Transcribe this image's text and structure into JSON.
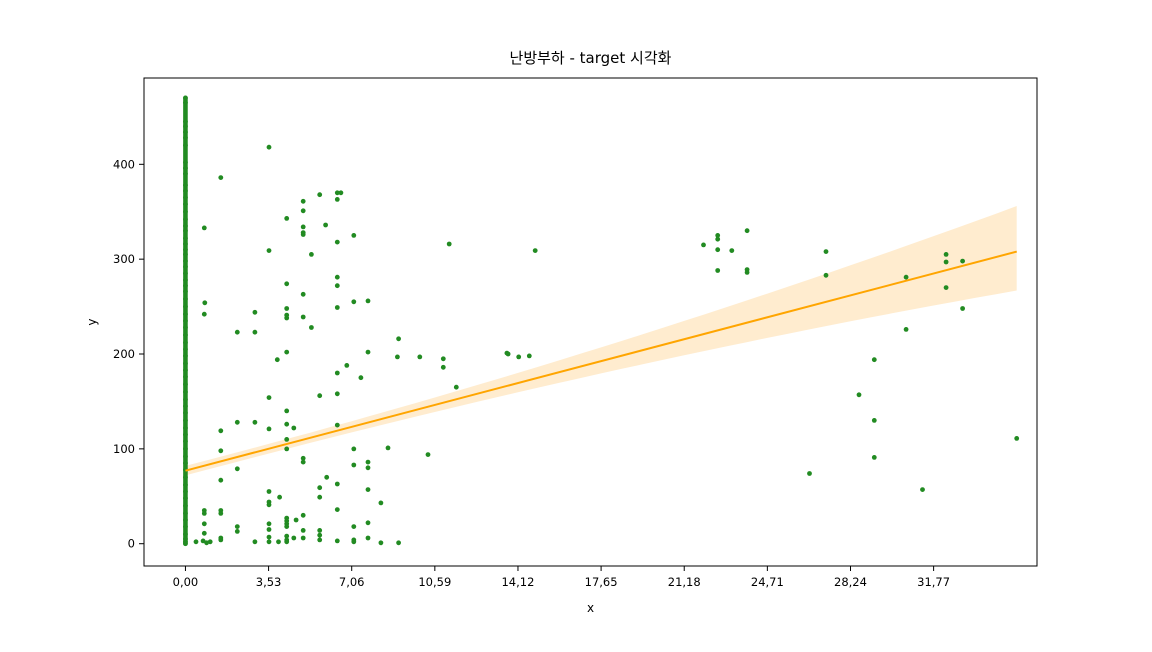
{
  "chart_data": {
    "type": "scatter",
    "title": "난방부하 - target 시각화",
    "xlabel": "x",
    "ylabel": "y",
    "xlim": [
      -1.76,
      36.16
    ],
    "ylim": [
      -23.5,
      491
    ],
    "x_ticks": [
      0.0,
      3.53,
      7.06,
      10.59,
      14.12,
      17.65,
      21.18,
      24.71,
      28.24,
      31.77
    ],
    "x_tick_labels": [
      "0,00",
      "3,53",
      "7,06",
      "10,59",
      "14,12",
      "17,65",
      "21,18",
      "24,71",
      "28,24",
      "31,77"
    ],
    "y_ticks": [
      0,
      100,
      200,
      300,
      400
    ],
    "y_tick_labels": [
      "0",
      "100",
      "200",
      "300",
      "400"
    ],
    "grid": false,
    "colors": {
      "points": "#228B22",
      "regression_line": "#FFA500",
      "confidence_band": "#FFE9C7"
    },
    "regression": {
      "x_range": [
        0.0,
        35.3
      ],
      "y_start": 77,
      "y_end": 308,
      "ci_upper_end": 356,
      "ci_lower_end": 267,
      "ci_x_left": 2.0,
      "ci_left_halfwidth": 5
    },
    "zero_column": {
      "x": 0.0,
      "y_range": [
        0,
        470
      ],
      "sample_values": [
        470,
        465,
        445,
        440,
        434,
        428,
        420,
        402,
        396,
        390,
        378,
        372,
        365,
        358,
        350,
        342,
        335,
        330,
        322,
        316,
        310,
        305,
        298,
        292,
        285,
        278,
        272,
        266,
        258,
        250,
        242,
        235,
        228,
        220,
        212,
        205,
        198,
        190,
        183,
        176,
        168,
        160,
        152,
        145,
        138,
        130,
        122,
        115,
        108,
        100,
        92,
        85,
        78,
        70,
        62,
        55,
        48,
        40,
        32,
        25,
        18,
        10,
        5,
        2,
        0
      ]
    },
    "points": [
      [
        0.45,
        2
      ],
      [
        0.8,
        333
      ],
      [
        0.82,
        254
      ],
      [
        0.8,
        242
      ],
      [
        0.8,
        35
      ],
      [
        0.8,
        32
      ],
      [
        0.8,
        21
      ],
      [
        0.8,
        11
      ],
      [
        0.75,
        3
      ],
      [
        0.9,
        1
      ],
      [
        1.05,
        2
      ],
      [
        1.5,
        386
      ],
      [
        1.5,
        119
      ],
      [
        1.5,
        98
      ],
      [
        1.5,
        67
      ],
      [
        1.5,
        35
      ],
      [
        1.5,
        32
      ],
      [
        1.5,
        6
      ],
      [
        1.5,
        4
      ],
      [
        2.2,
        223
      ],
      [
        2.2,
        128
      ],
      [
        2.2,
        79
      ],
      [
        2.2,
        18
      ],
      [
        2.2,
        13
      ],
      [
        2.95,
        244
      ],
      [
        2.95,
        223
      ],
      [
        2.95,
        128
      ],
      [
        2.95,
        2
      ],
      [
        3.55,
        418
      ],
      [
        3.55,
        309
      ],
      [
        3.55,
        154
      ],
      [
        3.55,
        121
      ],
      [
        3.55,
        55
      ],
      [
        3.55,
        44
      ],
      [
        3.55,
        41
      ],
      [
        3.55,
        21
      ],
      [
        3.55,
        15
      ],
      [
        3.55,
        7
      ],
      [
        3.55,
        2
      ],
      [
        3.9,
        194
      ],
      [
        4.0,
        49
      ],
      [
        3.95,
        2
      ],
      [
        4.3,
        343
      ],
      [
        4.3,
        274
      ],
      [
        4.3,
        248
      ],
      [
        4.3,
        241
      ],
      [
        4.3,
        238
      ],
      [
        4.3,
        202
      ],
      [
        4.3,
        140
      ],
      [
        4.3,
        126
      ],
      [
        4.3,
        110
      ],
      [
        4.3,
        100
      ],
      [
        4.3,
        27
      ],
      [
        4.3,
        24
      ],
      [
        4.3,
        21
      ],
      [
        4.3,
        18
      ],
      [
        4.3,
        8
      ],
      [
        4.3,
        4
      ],
      [
        4.3,
        2
      ],
      [
        4.6,
        122
      ],
      [
        4.6,
        6
      ],
      [
        4.7,
        25
      ],
      [
        5.0,
        361
      ],
      [
        5.0,
        351
      ],
      [
        5.0,
        334
      ],
      [
        5.0,
        328
      ],
      [
        5.0,
        326
      ],
      [
        5.0,
        263
      ],
      [
        5.0,
        239
      ],
      [
        5.0,
        90
      ],
      [
        5.0,
        86
      ],
      [
        5.0,
        30
      ],
      [
        5.0,
        14
      ],
      [
        5.0,
        6
      ],
      [
        5.35,
        305
      ],
      [
        5.35,
        228
      ],
      [
        5.7,
        368
      ],
      [
        5.7,
        156
      ],
      [
        5.7,
        59
      ],
      [
        5.7,
        49
      ],
      [
        5.7,
        14
      ],
      [
        5.7,
        9
      ],
      [
        5.7,
        4
      ],
      [
        5.95,
        336
      ],
      [
        6.0,
        70
      ],
      [
        6.45,
        370
      ],
      [
        6.45,
        363
      ],
      [
        6.45,
        318
      ],
      [
        6.45,
        281
      ],
      [
        6.45,
        272
      ],
      [
        6.45,
        249
      ],
      [
        6.45,
        180
      ],
      [
        6.45,
        158
      ],
      [
        6.45,
        125
      ],
      [
        6.45,
        63
      ],
      [
        6.45,
        36
      ],
      [
        6.45,
        3
      ],
      [
        6.6,
        370
      ],
      [
        6.85,
        188
      ],
      [
        7.15,
        325
      ],
      [
        7.15,
        255
      ],
      [
        7.15,
        100
      ],
      [
        7.15,
        83
      ],
      [
        7.15,
        18
      ],
      [
        7.15,
        4
      ],
      [
        7.15,
        2
      ],
      [
        7.45,
        175
      ],
      [
        7.75,
        256
      ],
      [
        7.75,
        202
      ],
      [
        7.75,
        86
      ],
      [
        7.75,
        80
      ],
      [
        7.75,
        57
      ],
      [
        7.75,
        22
      ],
      [
        7.75,
        6
      ],
      [
        8.3,
        43
      ],
      [
        8.3,
        1
      ],
      [
        8.6,
        101
      ],
      [
        9.05,
        216
      ],
      [
        9.0,
        197
      ],
      [
        9.05,
        1
      ],
      [
        9.95,
        197
      ],
      [
        10.3,
        94
      ],
      [
        10.95,
        195
      ],
      [
        10.95,
        186
      ],
      [
        11.2,
        316
      ],
      [
        11.5,
        165
      ],
      [
        13.65,
        201
      ],
      [
        13.7,
        200
      ],
      [
        14.15,
        197
      ],
      [
        14.6,
        198
      ],
      [
        14.85,
        309
      ],
      [
        22.0,
        315
      ],
      [
        22.6,
        325
      ],
      [
        22.6,
        321
      ],
      [
        22.6,
        310
      ],
      [
        22.6,
        288
      ],
      [
        23.2,
        309
      ],
      [
        23.85,
        330
      ],
      [
        23.85,
        289
      ],
      [
        23.85,
        286
      ],
      [
        26.5,
        74
      ],
      [
        27.2,
        308
      ],
      [
        27.2,
        283
      ],
      [
        28.6,
        157
      ],
      [
        29.25,
        194
      ],
      [
        29.25,
        130
      ],
      [
        29.25,
        91
      ],
      [
        30.6,
        281
      ],
      [
        30.6,
        226
      ],
      [
        31.3,
        57
      ],
      [
        32.3,
        305
      ],
      [
        32.3,
        297
      ],
      [
        32.3,
        270
      ],
      [
        33.0,
        298
      ],
      [
        33.0,
        248
      ],
      [
        35.3,
        111
      ]
    ]
  }
}
